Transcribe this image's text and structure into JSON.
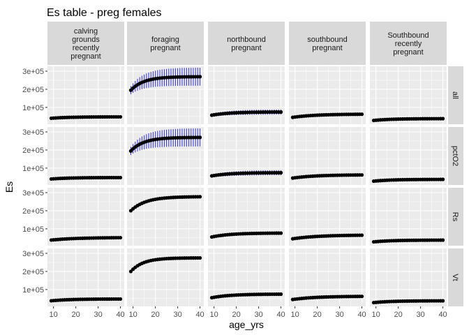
{
  "chart_data": {
    "type": "scatter",
    "title": "Es table - preg females",
    "xlabel": "age_yrs",
    "ylabel": "Es",
    "xlim": [
      7.3,
      41.7
    ],
    "ylim": [
      7000,
      327000
    ],
    "x_ticks": [
      10,
      20,
      30,
      40
    ],
    "y_ticks": [
      100000,
      200000,
      300000
    ],
    "y_tick_labels": [
      "1e+05",
      "2e+05",
      "3e+05"
    ],
    "grid": true,
    "legend": "none",
    "columns": [
      {
        "lines": [
          "calving",
          "grounds",
          "recently",
          "pregnant"
        ]
      },
      {
        "lines": [
          "foraging",
          "pregnant"
        ]
      },
      {
        "lines": [
          "northbound",
          "pregnant"
        ]
      },
      {
        "lines": [
          "southbound",
          "pregnant"
        ]
      },
      {
        "lines": [
          "Southbound",
          "recently",
          "pregnant"
        ]
      }
    ],
    "rows": [
      "all",
      "pctO2",
      "Rs",
      "Vt"
    ],
    "age_range": [
      9,
      40
    ],
    "panels": [
      [
        {
          "start": 40000,
          "plateau": 48000,
          "rate": 0.12,
          "error": 0
        },
        {
          "start": 195000,
          "plateau": 270000,
          "rate": 0.17,
          "error": 50000
        },
        {
          "start": 57000,
          "plateau": 75000,
          "rate": 0.12,
          "error": 14000
        },
        {
          "start": 45000,
          "plateau": 63000,
          "rate": 0.1,
          "error": 9000
        },
        {
          "start": 28000,
          "plateau": 38000,
          "rate": 0.12,
          "error": 0
        }
      ],
      [
        {
          "start": 40000,
          "plateau": 48000,
          "rate": 0.12,
          "error": 0
        },
        {
          "start": 195000,
          "plateau": 270000,
          "rate": 0.17,
          "error": 50000
        },
        {
          "start": 57000,
          "plateau": 75000,
          "rate": 0.12,
          "error": 14000
        },
        {
          "start": 45000,
          "plateau": 63000,
          "rate": 0.1,
          "error": 9000
        },
        {
          "start": 28000,
          "plateau": 38000,
          "rate": 0.12,
          "error": 0
        }
      ],
      [
        {
          "start": 38000,
          "plateau": 52000,
          "rate": 0.09,
          "error": 0
        },
        {
          "start": 200000,
          "plateau": 278000,
          "rate": 0.15,
          "error": 0
        },
        {
          "start": 55000,
          "plateau": 77000,
          "rate": 0.12,
          "error": 0
        },
        {
          "start": 45000,
          "plateau": 66000,
          "rate": 0.09,
          "error": 0
        },
        {
          "start": 28000,
          "plateau": 38000,
          "rate": 0.12,
          "error": 0
        }
      ],
      [
        {
          "start": 38000,
          "plateau": 48000,
          "rate": 0.12,
          "error": 0
        },
        {
          "start": 200000,
          "plateau": 275000,
          "rate": 0.18,
          "error": 0
        },
        {
          "start": 55000,
          "plateau": 75000,
          "rate": 0.12,
          "error": 0
        },
        {
          "start": 45000,
          "plateau": 63000,
          "rate": 0.1,
          "error": 0
        },
        {
          "start": 28000,
          "plateau": 38000,
          "rate": 0.12,
          "error": 0
        }
      ]
    ],
    "colors": {
      "panel_bg": "#ebebeb",
      "strip_bg": "#d9d9d9",
      "grid_major": "#ffffff",
      "point": "#000000",
      "errorbar": "#1c1cd6"
    }
  }
}
